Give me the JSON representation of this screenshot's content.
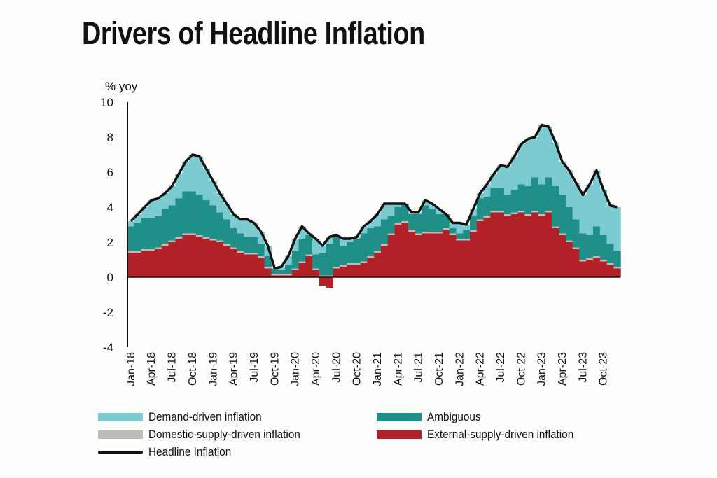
{
  "chart_data": {
    "type": "bar",
    "stacked": true,
    "title": "Drivers of Headline Inflation",
    "ylabel": "% yoy",
    "xlabel": "",
    "ylim": [
      -4,
      10
    ],
    "yticks": [
      "10",
      "8",
      "6",
      "4",
      "2",
      "0",
      "-2",
      "-4"
    ],
    "xtick_labels": [
      "Jan-18",
      "Apr-18",
      "Jul-18",
      "Oct-18",
      "Jan-19",
      "Apr-19",
      "Jul-19",
      "Oct-19",
      "Jan-20",
      "Apr-20",
      "Jul-20",
      "Oct-20",
      "Jan-21",
      "Apr-21",
      "Jul-21",
      "Oct-21",
      "Jan-22",
      "Apr-22",
      "Jul-22",
      "Oct-22",
      "Jan-23",
      "Apr-23",
      "Jul-23",
      "Oct-23"
    ],
    "x_start": "Jan-18",
    "x_frequency": "monthly",
    "grid": false,
    "legend_position": "bottom",
    "series": [
      {
        "name": "External-supply-driven inflation",
        "kind": "bar",
        "color": "#b22028",
        "values": [
          1.4,
          1.4,
          1.5,
          1.5,
          1.6,
          1.8,
          2.0,
          2.2,
          2.4,
          2.4,
          2.3,
          2.2,
          2.1,
          2.0,
          1.8,
          1.6,
          1.4,
          1.3,
          1.3,
          1.1,
          0.5,
          0.1,
          0.1,
          0.1,
          0.4,
          0.8,
          1.2,
          0.4,
          -0.5,
          -0.6,
          0.5,
          0.6,
          0.7,
          0.7,
          0.8,
          1.1,
          1.4,
          1.8,
          2.4,
          3.0,
          3.1,
          2.6,
          2.4,
          2.5,
          2.5,
          2.5,
          2.7,
          2.4,
          2.1,
          2.1,
          2.6,
          3.2,
          3.4,
          3.7,
          3.7,
          3.5,
          3.6,
          3.7,
          3.5,
          3.7,
          3.5,
          3.7,
          2.8,
          2.4,
          2.0,
          1.6,
          0.9,
          1.0,
          1.1,
          0.9,
          0.7,
          0.5
        ]
      },
      {
        "name": "Domestic-supply-driven inflation",
        "kind": "bar",
        "color": "#bdbdb8",
        "values": [
          0.1,
          0.1,
          0.1,
          0.1,
          0.1,
          0.1,
          0.1,
          0.1,
          0.1,
          0.1,
          0.1,
          0.1,
          0.1,
          0.1,
          0.1,
          0.1,
          0.1,
          0.1,
          0.1,
          0.1,
          0.1,
          0.1,
          0.1,
          0.1,
          0.1,
          0.1,
          0.1,
          0.1,
          0.1,
          0.1,
          0.1,
          0.1,
          0.1,
          0.1,
          0.1,
          0.1,
          0.1,
          0.1,
          0.1,
          0.1,
          0.1,
          0.1,
          0.1,
          0.1,
          0.1,
          0.1,
          0.1,
          0.1,
          0.1,
          0.1,
          0.1,
          0.1,
          0.1,
          0.1,
          0.1,
          0.1,
          0.1,
          0.1,
          0.1,
          0.1,
          0.1,
          0.1,
          0.1,
          0.1,
          0.1,
          0.1,
          0.1,
          0.1,
          0.1,
          0.1,
          0.1,
          0.1
        ]
      },
      {
        "name": "Ambiguous",
        "kind": "bar",
        "color": "#1f8f88",
        "values": [
          1.4,
          1.6,
          1.8,
          1.8,
          1.8,
          2.0,
          2.0,
          2.2,
          2.4,
          2.4,
          2.3,
          2.1,
          1.9,
          1.6,
          1.4,
          1.1,
          1.0,
          0.9,
          0.9,
          0.7,
          0.6,
          0.3,
          0.2,
          0.5,
          1.0,
          1.3,
          1.1,
          0.8,
          1.3,
          1.8,
          1.8,
          1.1,
          1.2,
          1.4,
          1.6,
          1.6,
          1.4,
          1.4,
          1.0,
          0.9,
          1.0,
          0.9,
          1.1,
          1.5,
          1.3,
          1.0,
          0.8,
          0.3,
          0.3,
          0.5,
          0.8,
          1.2,
          1.1,
          1.3,
          1.3,
          1.1,
          1.3,
          1.5,
          1.6,
          1.9,
          1.7,
          1.9,
          2.3,
          2.2,
          1.9,
          1.6,
          1.5,
          1.3,
          1.7,
          1.4,
          1.1,
          0.9
        ]
      },
      {
        "name": "Demand-driven inflation",
        "kind": "bar",
        "color": "#7ccbd0",
        "values": [
          0.3,
          0.5,
          0.6,
          1.0,
          1.0,
          0.9,
          1.1,
          1.4,
          1.7,
          2.1,
          2.2,
          1.8,
          1.4,
          1.1,
          0.9,
          0.8,
          0.8,
          1.0,
          0.8,
          0.7,
          0.6,
          0.0,
          0.2,
          0.5,
          0.7,
          0.7,
          0.1,
          0.9,
          0.4,
          0.4,
          0.0,
          0.4,
          0.2,
          0.1,
          0.4,
          0.4,
          0.7,
          0.9,
          0.7,
          0.2,
          0.0,
          0.1,
          0.1,
          0.3,
          0.3,
          0.3,
          0.0,
          0.3,
          0.6,
          0.3,
          0.4,
          0.3,
          0.7,
          0.8,
          1.3,
          1.6,
          1.9,
          2.3,
          2.7,
          2.3,
          3.4,
          2.9,
          2.5,
          1.9,
          2.1,
          2.1,
          2.2,
          2.9,
          3.2,
          2.6,
          2.2,
          2.5
        ]
      },
      {
        "name": "Headline Inflation",
        "kind": "line",
        "color": "#111111",
        "values": [
          3.2,
          3.6,
          4.0,
          4.4,
          4.5,
          4.8,
          5.2,
          5.9,
          6.6,
          7.0,
          6.9,
          6.2,
          5.5,
          4.8,
          4.2,
          3.6,
          3.3,
          3.3,
          3.1,
          2.6,
          1.8,
          0.5,
          0.6,
          1.2,
          2.2,
          2.9,
          2.5,
          2.2,
          1.8,
          2.3,
          2.4,
          2.2,
          2.2,
          2.3,
          2.9,
          3.2,
          3.6,
          4.2,
          4.2,
          4.2,
          4.2,
          3.7,
          3.7,
          4.4,
          4.2,
          3.9,
          3.6,
          3.1,
          3.1,
          3.0,
          3.9,
          4.8,
          5.3,
          5.9,
          6.4,
          6.3,
          6.9,
          7.6,
          7.9,
          8.0,
          8.7,
          8.6,
          7.7,
          6.6,
          6.1,
          5.4,
          4.7,
          5.3,
          6.1,
          5.0,
          4.1,
          4.0
        ]
      }
    ],
    "legend": [
      {
        "label": "Demand-driven inflation",
        "color": "#7ccbd0",
        "kind": "bar"
      },
      {
        "label": "Ambiguous",
        "color": "#1f8f88",
        "kind": "bar"
      },
      {
        "label": "Domestic-supply-driven inflation",
        "color": "#bdbdb8",
        "kind": "bar"
      },
      {
        "label": "External-supply-driven inflation",
        "color": "#b22028",
        "kind": "bar"
      },
      {
        "label": "Headline Inflation",
        "color": "#111111",
        "kind": "line"
      }
    ]
  }
}
